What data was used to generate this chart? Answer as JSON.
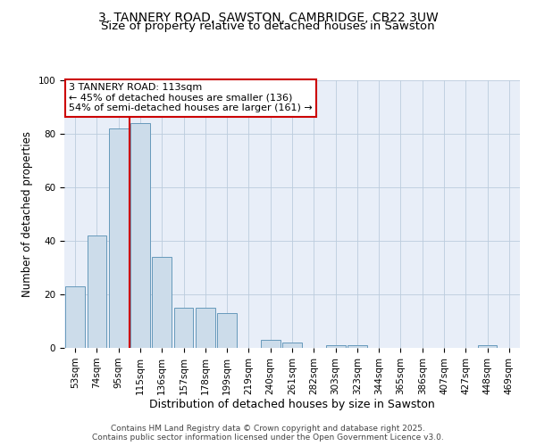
{
  "title": "3, TANNERY ROAD, SAWSTON, CAMBRIDGE, CB22 3UW",
  "subtitle": "Size of property relative to detached houses in Sawston",
  "xlabel": "Distribution of detached houses by size in Sawston",
  "ylabel": "Number of detached properties",
  "categories": [
    "53sqm",
    "74sqm",
    "95sqm",
    "115sqm",
    "136sqm",
    "157sqm",
    "178sqm",
    "199sqm",
    "219sqm",
    "240sqm",
    "261sqm",
    "282sqm",
    "303sqm",
    "323sqm",
    "344sqm",
    "365sqm",
    "386sqm",
    "407sqm",
    "427sqm",
    "448sqm",
    "469sqm"
  ],
  "values": [
    23,
    42,
    82,
    84,
    34,
    15,
    15,
    13,
    0,
    3,
    2,
    0,
    1,
    1,
    0,
    0,
    0,
    0,
    0,
    1,
    0
  ],
  "bar_color": "#ccdcea",
  "bar_edge_color": "#6699bb",
  "vline_x": 2.5,
  "vline_color": "#cc0000",
  "annotation_line1": "3 TANNERY ROAD: 113sqm",
  "annotation_line2": "← 45% of detached houses are smaller (136)",
  "annotation_line3": "54% of semi-detached houses are larger (161) →",
  "annotation_box_color": "#cc0000",
  "ylim": [
    0,
    100
  ],
  "yticks": [
    0,
    20,
    40,
    60,
    80,
    100
  ],
  "grid_color": "#bbccdd",
  "bg_color": "#e8eef8",
  "footer": "Contains HM Land Registry data © Crown copyright and database right 2025.\nContains public sector information licensed under the Open Government Licence v3.0.",
  "title_fontsize": 10,
  "subtitle_fontsize": 9.5,
  "xlabel_fontsize": 9,
  "ylabel_fontsize": 8.5,
  "tick_fontsize": 7.5,
  "annotation_fontsize": 8,
  "footer_fontsize": 6.5
}
